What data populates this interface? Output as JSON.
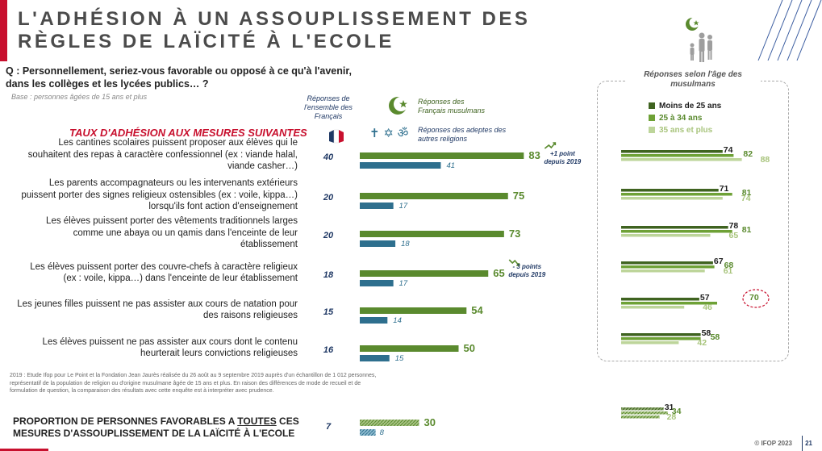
{
  "title": {
    "line1": "L'ADHÉSION À UN ASSOUPLISSEMENT DES",
    "line2": "RÈGLES DE LAÏCITÉ À L'ECOLE"
  },
  "question": {
    "line1": "Q : Personnellement, seriez-vous favorable ou opposé à ce qu'à l'avenir,",
    "line2": "dans les collèges et les lycées publics… ?"
  },
  "base": "Base : personnes âgées de 15 ans et plus",
  "headers": {
    "ensemble": "Réponses de l'ensemble des Français",
    "musulmans": "Réponses des Français musulmans",
    "autres": "Réponses des adeptes des autres religions",
    "age_panel": "Réponses selon l'âge des musulmans",
    "other_religion_symbols": "✝ ✡ ॐ"
  },
  "section_title": "TAUX D'ADHÉSION AUX MESURES SUIVANTES",
  "colors": {
    "muslims": "#5a8a2e",
    "others": "#2e6f8e",
    "age_under25": "#3f6320",
    "age_25_34": "#6ea136",
    "age_35plus": "#bdd59a",
    "accent_red": "#c8102e",
    "navy": "#1f3864"
  },
  "chart_data": [
    {
      "type": "bar",
      "orientation": "horizontal",
      "title": "TAUX D'ADHÉSION AUX MESURES SUIVANTES",
      "categories": [
        "Les cantines scolaires puissent proposer aux élèves qui le souhaitent des repas à caractère confessionnel (ex : viande halal, viande casher…)",
        "Les parents accompagnateurs ou les intervenants extérieurs puissent porter des signes religieux ostensibles (ex : voile, kippa…) lorsqu'ils font action d'enseignement",
        "Les élèves puissent porter des vêtements traditionnels larges comme une abaya ou un qamis dans l'enceinte de leur établissement",
        "Les élèves puissent porter des couvre-chefs à caractère religieux (ex : voile, kippa…) dans l'enceinte de leur établissement",
        "Les jeunes filles puissent ne pas assister aux cours de natation pour des raisons religieuses",
        "Les élèves puissent ne pas assister aux cours dont le contenu heurterait leurs convictions religieuses"
      ],
      "category_lines": [
        [
          "Les cantines scolaires puissent proposer aux élèves qui le",
          "souhaitent des repas à caractère confessionnel (ex : viande halal,",
          "viande casher…)"
        ],
        [
          "Les parents accompagnateurs ou les intervenants extérieurs",
          "puissent porter des signes religieux ostensibles (ex : voile, kippa…)",
          "lorsqu'ils font action d'enseignement"
        ],
        [
          "Les élèves puissent porter des vêtements traditionnels larges",
          "comme une abaya ou un qamis dans l'enceinte de leur",
          "établissement"
        ],
        [
          "Les élèves puissent porter des couvre-chefs à caractère religieux",
          "(ex : voile, kippa…) dans l'enceinte de leur établissement"
        ],
        [
          "Les jeunes filles puissent ne pas assister aux cours de natation pour",
          "des raisons religieuses"
        ],
        [
          "Les élèves puissent ne pas assister aux cours dont le contenu",
          "heurterait leurs convictions religieuses"
        ]
      ],
      "ensemble_francais": [
        40,
        20,
        20,
        18,
        15,
        16
      ],
      "series": [
        {
          "name": "Réponses des Français musulmans",
          "values": [
            83,
            75,
            73,
            65,
            54,
            50
          ]
        },
        {
          "name": "Réponses des adeptes des autres religions",
          "values": [
            41,
            17,
            18,
            17,
            14,
            15
          ]
        }
      ],
      "annotations": [
        {
          "category_index": 0,
          "text": "+1 point depuis 2019"
        },
        {
          "category_index": 3,
          "text": "- 3 points depuis 2019"
        }
      ]
    },
    {
      "type": "bar",
      "orientation": "horizontal",
      "title": "Réponses selon l'âge des musulmans",
      "series": [
        {
          "name": "Moins de 25 ans",
          "values": [
            74,
            71,
            78,
            67,
            57,
            58,
            31
          ]
        },
        {
          "name": "25 à 34 ans",
          "values": [
            82,
            81,
            81,
            68,
            70,
            58,
            34
          ]
        },
        {
          "name": "35 ans et plus",
          "values": [
            88,
            74,
            65,
            61,
            46,
            42,
            28
          ]
        }
      ],
      "highlight": {
        "series": "25 à 34 ans",
        "category_index": 4
      }
    },
    {
      "type": "bar",
      "orientation": "horizontal",
      "title": "PROPORTION DE PERSONNES FAVORABLES À TOUTES CES MESURES D'ASSOUPLISSEMENT DE LA LAÏCITÉ À L'ECOLE",
      "ensemble_francais": 7,
      "series": [
        {
          "name": "Réponses des Français musulmans",
          "values": [
            30
          ]
        },
        {
          "name": "Réponses des adeptes des autres religions",
          "values": [
            8
          ]
        }
      ]
    }
  ],
  "summary": {
    "part1": "PROPORTION DE PERSONNES FAVORABLES A ",
    "underlined": "TOUTES",
    "part2": " CES MESURES D'ASSOUPLISSEMENT DE LA LAÏCITÉ À L'ECOLE"
  },
  "footnote": "2019 : Etude Ifop pour Le Point et la Fondation Jean Jaurès réalisée du 26 août au 9 septembre 2019 auprès d'un échantillon de 1 012 personnes, représentatif de la population de religion ou d'origine musulmane âgée de 15 ans et plus. En raison des différences de mode de recueil et de formulation de question, la comparaison des résultats avec cette enquête est à interpréter avec prudence.",
  "footer": {
    "brand": "© IFOP 2023",
    "page": "21"
  }
}
